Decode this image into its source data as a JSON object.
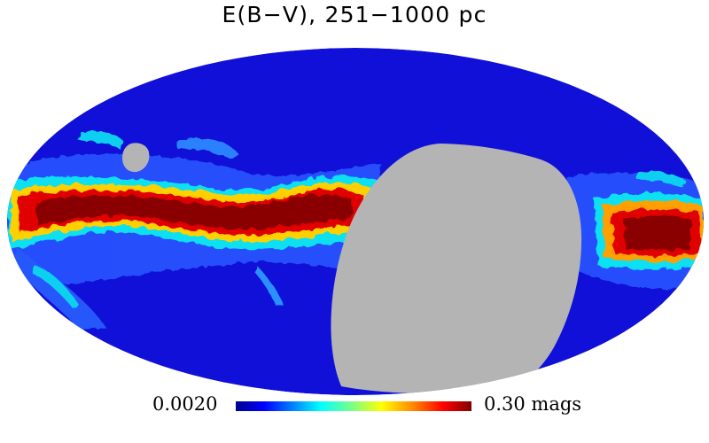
{
  "map": {
    "title": "E(B−V), 251−1000 pc",
    "projection": "mollweide",
    "coordinate_system": "galactic",
    "masked_region_color": "#b4b4b4",
    "background_color": "#ffffff"
  },
  "colorbar": {
    "min_label": "0.0020",
    "max_label": "0.30 mags",
    "min_value": 0.002,
    "max_value": 0.3,
    "colormap": "jet",
    "colors": [
      "#00008f",
      "#0000ff",
      "#0080ff",
      "#00ffff",
      "#80ff80",
      "#ffff00",
      "#ff8000",
      "#ff0000",
      "#800000"
    ]
  }
}
